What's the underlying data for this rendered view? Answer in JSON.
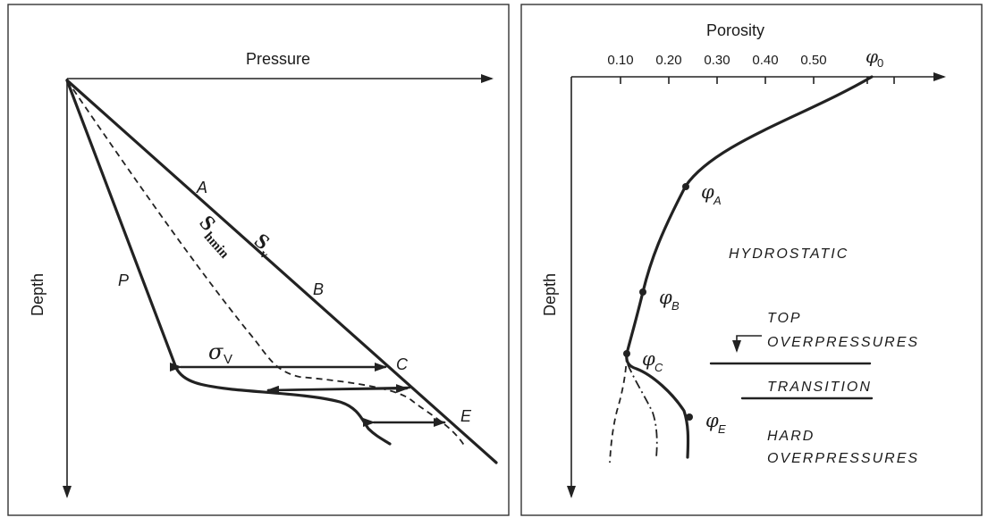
{
  "left_panel": {
    "x_axis_label": "Pressure",
    "y_axis_label": "Depth",
    "label_a": "A",
    "label_b": "B",
    "label_c": "C",
    "label_e": "E",
    "label_p": "P",
    "label_sv_main": "S",
    "label_sv_sub": "v",
    "label_shmin_main": "S",
    "label_shmin_sub": "hmin",
    "label_sigma_main": "σ",
    "label_sigma_sub": "V"
  },
  "right_panel": {
    "x_axis_label": "Porosity",
    "y_axis_label": "Depth",
    "ticks": [
      "0.10",
      "0.20",
      "0.30",
      "0.40",
      "0.50"
    ],
    "phi0_main": "φ",
    "phi0_sub": "0",
    "phiA_main": "φ",
    "phiA_sub": "A",
    "phiB_main": "φ",
    "phiB_sub": "B",
    "phiC_main": "φ",
    "phiC_sub": "C",
    "phiE_main": "φ",
    "phiE_sub": "E",
    "zone_hydrostatic": "HYDROSTATIC",
    "zone_top_line1": "TOP",
    "zone_top_line2": "OVERPRESSURES",
    "zone_transition": "TRANSITION",
    "zone_hard_line1": "HARD",
    "zone_hard_line2": "OVERPRESSURES"
  }
}
